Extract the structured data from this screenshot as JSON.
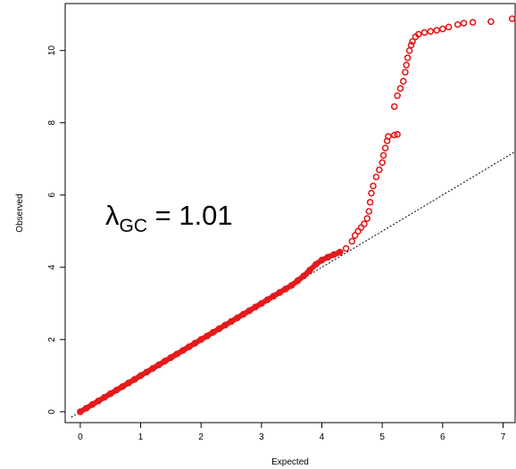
{
  "chart_data": {
    "type": "scatter",
    "title": "",
    "xlabel": "Expected",
    "ylabel": "Observed",
    "xlim": [
      -0.25,
      7.2
    ],
    "ylim": [
      -0.3,
      11.3
    ],
    "xticks": [
      0,
      1,
      2,
      3,
      4,
      5,
      6,
      7
    ],
    "yticks": [
      0,
      2,
      4,
      6,
      8,
      10
    ],
    "grid": false,
    "reference_line": {
      "style": "dotted",
      "slope": 1,
      "intercept": 0
    },
    "annotation": {
      "symbol": "λ",
      "subscript": "GC",
      "text": " = 1.01"
    },
    "marker_color": "#e41a1c",
    "series": [
      {
        "points": [
          [
            0.0,
            0.0
          ],
          [
            0.1,
            0.1
          ],
          [
            0.2,
            0.2
          ],
          [
            0.3,
            0.3
          ],
          [
            0.4,
            0.4
          ],
          [
            0.5,
            0.5
          ],
          [
            0.6,
            0.6
          ],
          [
            0.7,
            0.7
          ],
          [
            0.8,
            0.8
          ],
          [
            0.9,
            0.9
          ],
          [
            1.0,
            1.0
          ],
          [
            1.1,
            1.1
          ],
          [
            1.2,
            1.2
          ],
          [
            1.3,
            1.3
          ],
          [
            1.4,
            1.4
          ],
          [
            1.5,
            1.5
          ],
          [
            1.6,
            1.6
          ],
          [
            1.7,
            1.7
          ],
          [
            1.8,
            1.8
          ],
          [
            1.9,
            1.9
          ],
          [
            2.0,
            2.0
          ],
          [
            2.1,
            2.1
          ],
          [
            2.2,
            2.2
          ],
          [
            2.3,
            2.3
          ],
          [
            2.4,
            2.4
          ],
          [
            2.5,
            2.5
          ],
          [
            2.6,
            2.6
          ],
          [
            2.7,
            2.7
          ],
          [
            2.8,
            2.8
          ],
          [
            2.9,
            2.9
          ],
          [
            3.0,
            3.0
          ],
          [
            3.1,
            3.1
          ],
          [
            3.2,
            3.2
          ],
          [
            3.3,
            3.3
          ],
          [
            3.4,
            3.4
          ],
          [
            3.5,
            3.5
          ],
          [
            3.6,
            3.63
          ],
          [
            3.7,
            3.76
          ],
          [
            3.8,
            3.92
          ],
          [
            3.9,
            4.08
          ],
          [
            4.0,
            4.2
          ],
          [
            4.1,
            4.28
          ],
          [
            4.2,
            4.35
          ],
          [
            4.3,
            4.42
          ],
          [
            4.4,
            4.52
          ],
          [
            4.5,
            4.72
          ],
          [
            4.55,
            4.88
          ],
          [
            4.6,
            5.0
          ],
          [
            4.65,
            5.1
          ],
          [
            4.7,
            5.2
          ],
          [
            4.75,
            5.35
          ],
          [
            4.78,
            5.55
          ],
          [
            4.8,
            5.8
          ],
          [
            4.82,
            6.05
          ],
          [
            4.85,
            6.25
          ],
          [
            4.9,
            6.5
          ],
          [
            4.95,
            6.7
          ],
          [
            5.0,
            6.9
          ],
          [
            5.02,
            7.1
          ],
          [
            5.05,
            7.3
          ],
          [
            5.08,
            7.5
          ],
          [
            5.1,
            7.62
          ],
          [
            5.2,
            7.66
          ],
          [
            5.25,
            7.68
          ],
          [
            5.2,
            8.45
          ],
          [
            5.25,
            8.75
          ],
          [
            5.3,
            8.95
          ],
          [
            5.35,
            9.15
          ],
          [
            5.38,
            9.4
          ],
          [
            5.4,
            9.6
          ],
          [
            5.42,
            9.8
          ],
          [
            5.45,
            10.0
          ],
          [
            5.48,
            10.15
          ],
          [
            5.5,
            10.25
          ],
          [
            5.55,
            10.38
          ],
          [
            5.6,
            10.45
          ],
          [
            5.7,
            10.5
          ],
          [
            5.8,
            10.53
          ],
          [
            5.9,
            10.56
          ],
          [
            6.0,
            10.6
          ],
          [
            6.1,
            10.65
          ],
          [
            6.25,
            10.72
          ],
          [
            6.35,
            10.76
          ],
          [
            6.5,
            10.78
          ],
          [
            6.8,
            10.8
          ],
          [
            7.15,
            10.88
          ]
        ]
      }
    ]
  }
}
